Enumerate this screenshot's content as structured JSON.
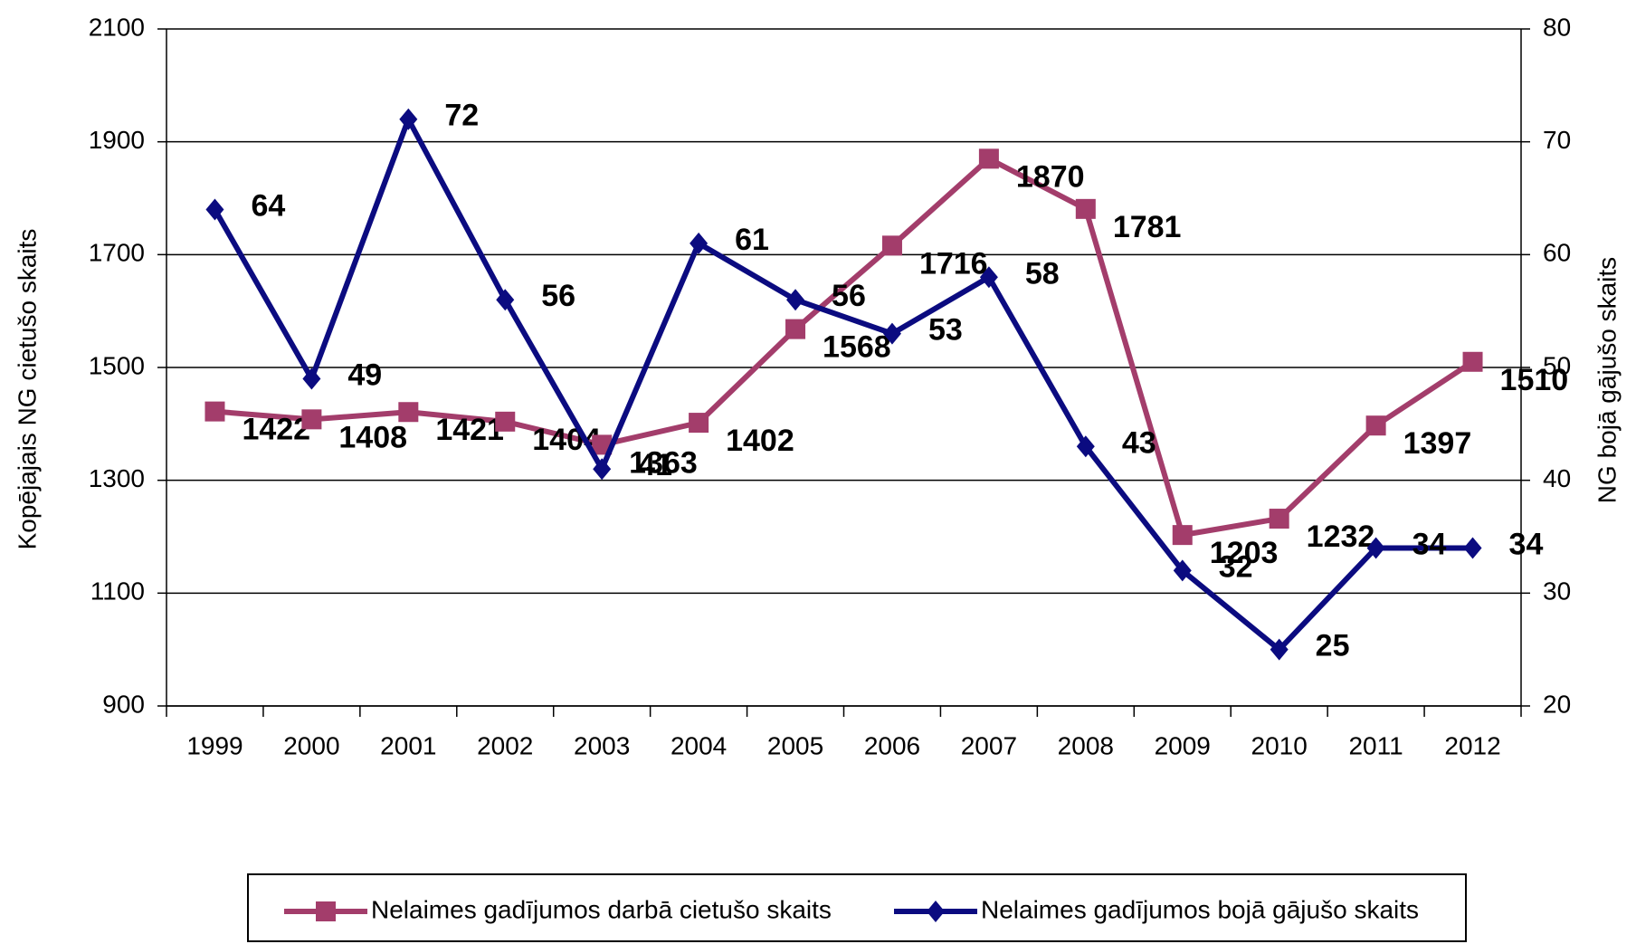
{
  "chart_data": {
    "type": "line",
    "categories": [
      "1999",
      "2000",
      "2001",
      "2002",
      "2003",
      "2004",
      "2005",
      "2006",
      "2007",
      "2008",
      "2009",
      "2010",
      "2011",
      "2012"
    ],
    "y_label": "Kopējajais NG cietušo skaits",
    "y2_label": "NG bojā gājušo skaits",
    "ylim": [
      900,
      2100
    ],
    "yticks": [
      900,
      1100,
      1300,
      1500,
      1700,
      1900,
      2100
    ],
    "y2lim": [
      20,
      80
    ],
    "y2ticks": [
      20,
      30,
      40,
      50,
      60,
      70,
      80
    ],
    "grid": true,
    "series": [
      {
        "name": "Nelaimes gadījumos darbā cietušo skaits",
        "color": "#a33d6b",
        "marker": "square",
        "values": [
          1422,
          1408,
          1421,
          1404,
          1363,
          1402,
          1568,
          1716,
          1870,
          1781,
          1203,
          1232,
          1397,
          1510
        ]
      },
      {
        "name": "Nelaimes gadījumos bojā gājušo skaits",
        "color": "#0b0b80",
        "marker": "diamond",
        "axis": "y2",
        "values": [
          64,
          49,
          72,
          56,
          41,
          61,
          56,
          53,
          58,
          43,
          32,
          25,
          34,
          34
        ]
      }
    ]
  }
}
